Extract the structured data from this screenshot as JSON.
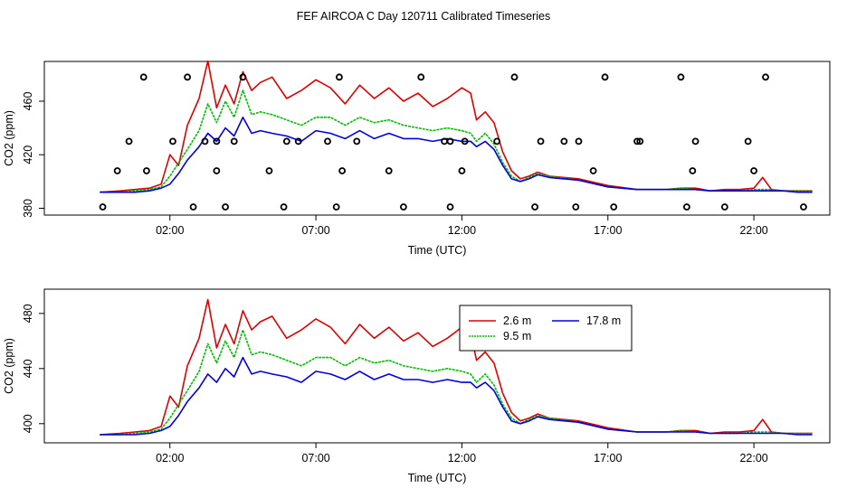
{
  "figure_title": "FEF AIRCOA C  Day 120711  Calibrated Timeseries",
  "chart_data": [
    {
      "type": "line",
      "panel": "top",
      "xlabel": "Time (UTC)",
      "ylabel": "CO2 (ppm)",
      "x_unit": "hours UTC",
      "xlim": [
        -2.3,
        24.6
      ],
      "ylim": [
        374.9,
        489.7
      ],
      "x_ticks": [
        2,
        7,
        12,
        17,
        22
      ],
      "x_tick_labels": [
        "02:00",
        "07:00",
        "12:00",
        "17:00",
        "22:00"
      ],
      "y_ticks": [
        380,
        420,
        460
      ],
      "y_tick_labels": [
        "380",
        "420",
        "460"
      ],
      "series": [
        {
          "name": "2.6 m",
          "color": "#e00000",
          "x": [
            -0.4,
            0.3,
            0.8,
            1.3,
            1.7,
            2.0,
            2.3,
            2.6,
            3.0,
            3.3,
            3.6,
            3.9,
            4.2,
            4.5,
            4.8,
            5.1,
            5.5,
            6.0,
            6.5,
            7.0,
            7.5,
            8.0,
            8.5,
            9.0,
            9.5,
            10.0,
            10.5,
            11.0,
            11.5,
            12.0,
            12.3,
            12.5,
            12.8,
            13.1,
            13.4,
            13.7,
            14.0,
            14.3,
            14.6,
            15.0,
            16.0,
            17.0,
            18.0,
            19.0,
            19.5,
            20.0,
            20.5,
            21.0,
            21.5,
            22.0,
            22.3,
            22.6,
            23.0,
            23.5,
            24.0
          ],
          "y": [
            392,
            393,
            394,
            395,
            398,
            420,
            412,
            442,
            462,
            490,
            455,
            472,
            458,
            482,
            468,
            474,
            478,
            462,
            468,
            476,
            470,
            458,
            472,
            462,
            470,
            460,
            466,
            456,
            462,
            470,
            466,
            446,
            452,
            444,
            422,
            408,
            402,
            404,
            407,
            404,
            402,
            397,
            394,
            394,
            395,
            395,
            393,
            394,
            394,
            395,
            403,
            394,
            393,
            393,
            393
          ]
        },
        {
          "name": "9.5 m",
          "color": "#00c000",
          "x": [
            -0.4,
            0.3,
            0.8,
            1.3,
            1.7,
            2.0,
            2.3,
            2.6,
            3.0,
            3.3,
            3.6,
            3.9,
            4.2,
            4.5,
            4.8,
            5.1,
            5.5,
            6.0,
            6.5,
            7.0,
            7.5,
            8.0,
            8.5,
            9.0,
            9.5,
            10.0,
            10.5,
            11.0,
            11.5,
            12.0,
            12.3,
            12.5,
            12.8,
            13.1,
            13.4,
            13.7,
            14.0,
            14.3,
            14.6,
            15.0,
            16.0,
            17.0,
            18.0,
            19.0,
            19.5,
            20.0,
            20.5,
            21.0,
            21.5,
            22.0,
            22.3,
            22.6,
            23.0,
            23.5,
            24.0
          ],
          "y": [
            392,
            392,
            393,
            394,
            396,
            404,
            414,
            424,
            438,
            458,
            444,
            460,
            448,
            468,
            450,
            452,
            450,
            446,
            442,
            448,
            448,
            442,
            448,
            444,
            446,
            442,
            440,
            438,
            440,
            438,
            436,
            430,
            436,
            428,
            414,
            404,
            400,
            403,
            406,
            404,
            401,
            396,
            394,
            394,
            395,
            394,
            393,
            393,
            393,
            394,
            394,
            394,
            393,
            393,
            393
          ]
        },
        {
          "name": "17.8 m",
          "color": "#0000e0",
          "x": [
            -0.4,
            0.3,
            0.8,
            1.3,
            1.7,
            2.0,
            2.3,
            2.6,
            3.0,
            3.3,
            3.6,
            3.9,
            4.2,
            4.5,
            4.8,
            5.1,
            5.5,
            6.0,
            6.5,
            7.0,
            7.5,
            8.0,
            8.5,
            9.0,
            9.5,
            10.0,
            10.5,
            11.0,
            11.5,
            12.0,
            12.3,
            12.5,
            12.8,
            13.1,
            13.4,
            13.7,
            14.0,
            14.3,
            14.6,
            15.0,
            16.0,
            17.0,
            18.0,
            19.0,
            19.5,
            20.0,
            20.5,
            21.0,
            21.5,
            22.0,
            22.3,
            22.6,
            23.0,
            23.5,
            24.0
          ],
          "y": [
            392,
            392,
            392,
            393,
            395,
            398,
            406,
            416,
            426,
            436,
            430,
            440,
            434,
            448,
            436,
            438,
            436,
            434,
            430,
            438,
            436,
            432,
            438,
            432,
            436,
            432,
            432,
            430,
            432,
            430,
            430,
            426,
            430,
            424,
            412,
            402,
            400,
            402,
            405,
            403,
            401,
            396,
            394,
            394,
            394,
            394,
            393,
            393,
            393,
            393,
            393,
            393,
            393,
            392,
            392
          ]
        }
      ],
      "markers": {
        "type": "scatter",
        "symbol": "open circle",
        "x": [
          1.1,
          2.6,
          4.5,
          7.8,
          10.6,
          13.8,
          16.9,
          19.5,
          22.4,
          0.6,
          2.1,
          3.2,
          4.2,
          6.4,
          8.4,
          11.4,
          14.7,
          16.0,
          18.0,
          -0.3,
          1.2,
          3.6,
          5.4,
          7.9,
          9.5,
          12.0,
          16.5,
          19.9,
          22.0,
          2.8,
          3.9,
          5.9,
          7.7,
          10.0,
          11.6,
          14.5,
          15.9,
          17.2,
          19.7,
          21.0,
          23.7,
          0.2,
          3.6,
          6.0,
          7.4,
          11.6,
          12.1,
          13.2,
          15.5,
          18.1,
          20.0,
          21.8
        ],
        "y": [
          478,
          478,
          478,
          478,
          478,
          478,
          478,
          478,
          478,
          430,
          430,
          430,
          430,
          430,
          430,
          430,
          430,
          430,
          430,
          381,
          408,
          408,
          408,
          408,
          408,
          408,
          408,
          408,
          408,
          381,
          381,
          381,
          381,
          381,
          381,
          381,
          381,
          381,
          381,
          381,
          381,
          408,
          430,
          430,
          430,
          430,
          430,
          430,
          430,
          430,
          430,
          430
        ]
      }
    },
    {
      "type": "line",
      "panel": "bottom",
      "xlabel": "Time (UTC)",
      "ylabel": "CO2 (ppm)",
      "x_unit": "hours UTC",
      "xlim": [
        -2.3,
        24.6
      ],
      "ylim": [
        386.1,
        497.6
      ],
      "x_ticks": [
        2,
        7,
        12,
        17,
        22
      ],
      "x_tick_labels": [
        "02:00",
        "07:00",
        "12:00",
        "17:00",
        "22:00"
      ],
      "y_ticks": [
        400,
        440,
        480
      ],
      "y_tick_labels": [
        "400",
        "440",
        "480"
      ],
      "legend": {
        "position": "top-center",
        "entries": [
          "2.6 m",
          "17.8 m",
          "9.5 m"
        ]
      },
      "series_ref": "same as top panel"
    }
  ],
  "legend_labels": {
    "a": "2.6 m",
    "b": "17.8 m",
    "c": "9.5 m"
  }
}
